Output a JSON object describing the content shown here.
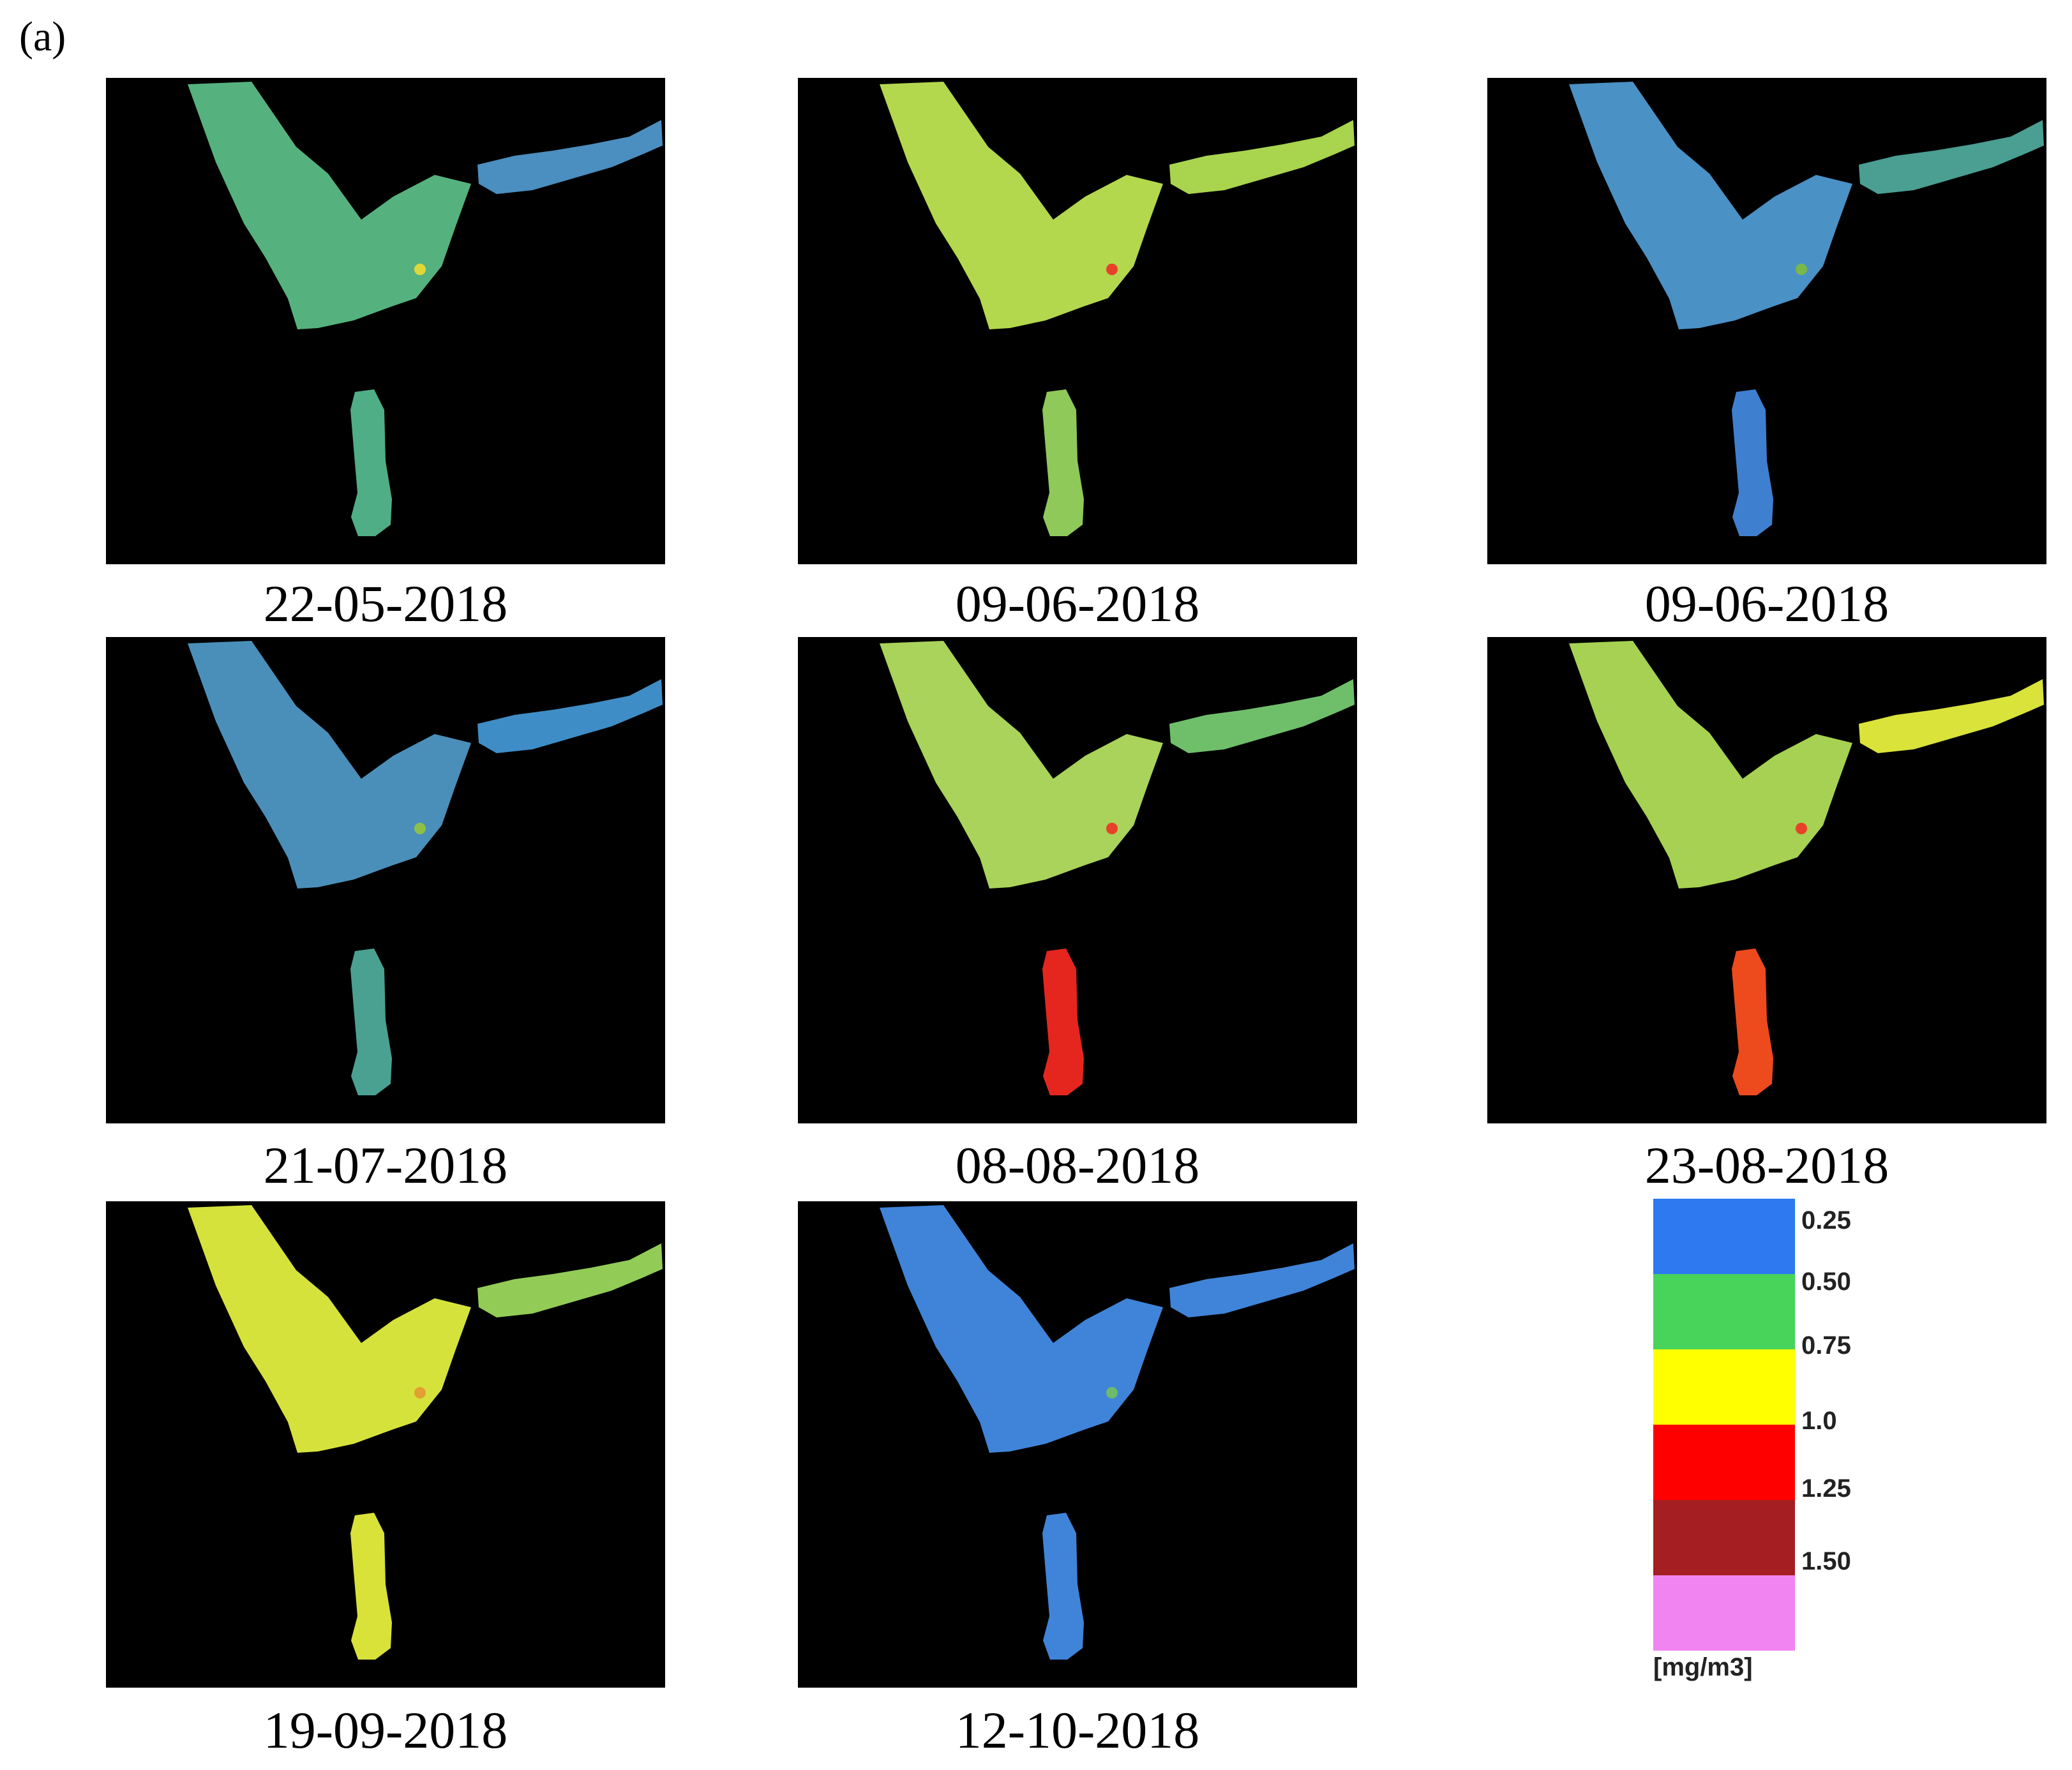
{
  "figure": {
    "panel_label": "(a)"
  },
  "panels": [
    {
      "date": "22-05-2018",
      "main_color": "#55b27e",
      "lower_color": "#4fae86",
      "river_color": "#4b8ec0",
      "hotspot_color": "#e0d83a"
    },
    {
      "date": "09-06-2018",
      "main_color": "#b3d84e",
      "lower_color": "#8fc95a",
      "river_color": "#a8d44e",
      "hotspot_color": "#e8412a"
    },
    {
      "date": "09-06-2018",
      "main_color": "#4a91c6",
      "lower_color": "#3f7fd0",
      "river_color": "#4a9e92",
      "hotspot_color": "#7ab84a"
    },
    {
      "date": "21-07-2018",
      "main_color": "#4a8fb9",
      "lower_color": "#4aa192",
      "river_color": "#3f8dc6",
      "hotspot_color": "#8ec048"
    },
    {
      "date": "08-08-2018",
      "main_color": "#a9d35a",
      "lower_color": "#e5261f",
      "river_color": "#6fbf6a",
      "hotspot_color": "#e8412a"
    },
    {
      "date": "23-08-2018",
      "main_color": "#a6d152",
      "lower_color": "#ed4a1d",
      "river_color": "#d9e33a",
      "hotspot_color": "#e8412a"
    },
    {
      "date": "19-09-2018",
      "main_color": "#d6e23c",
      "lower_color": "#d8e238",
      "river_color": "#92cc57",
      "hotspot_color": "#e2a030"
    },
    {
      "date": "12-10-2018",
      "main_color": "#3f84d8",
      "lower_color": "#3f84d8",
      "river_color": "#3f84d8",
      "hotspot_color": "#6dbb6a"
    }
  ],
  "legend": {
    "swatches": [
      {
        "color": "#2e78f0"
      },
      {
        "color": "#48d35a"
      },
      {
        "color": "#ffff00"
      },
      {
        "color": "#ff0000"
      },
      {
        "color": "#a51e22"
      },
      {
        "color": "#f184f0"
      }
    ],
    "values": [
      "0.25",
      "0.50",
      "0.75",
      "1.0",
      "1.25",
      "1.50"
    ],
    "unit": "[mg/m3]"
  }
}
